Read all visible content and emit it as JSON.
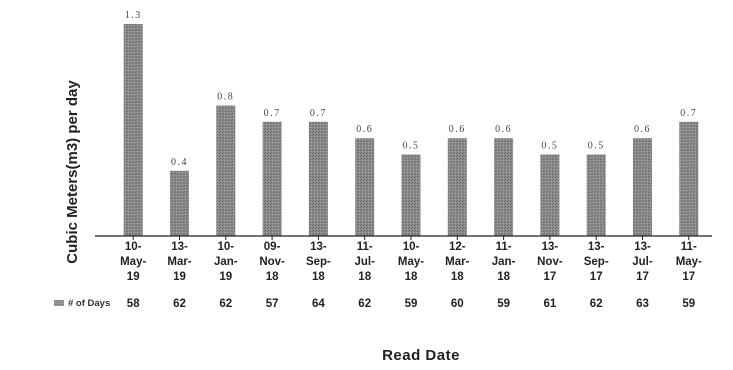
{
  "chart_data": {
    "type": "bar",
    "title": "",
    "ylabel": "Cubic Meters(m3) per day",
    "xlabel": "Read Date",
    "categories": [
      [
        "10-",
        "May-",
        "19"
      ],
      [
        "13-",
        "Mar-",
        "19"
      ],
      [
        "10-",
        "Jan-",
        "19"
      ],
      [
        "09-",
        "Nov-",
        "18"
      ],
      [
        "13-",
        "Sep-",
        "18"
      ],
      [
        "11-",
        "Jul-",
        "18"
      ],
      [
        "10-",
        "May-",
        "18"
      ],
      [
        "12-",
        "Mar-",
        "18"
      ],
      [
        "11-",
        "Jan-",
        "18"
      ],
      [
        "13-",
        "Nov-",
        "17"
      ],
      [
        "13-",
        "Sep-",
        "17"
      ],
      [
        "13-",
        "Jul-",
        "17"
      ],
      [
        "11-",
        "May-",
        "17"
      ]
    ],
    "values": [
      1.3,
      0.4,
      0.8,
      0.7,
      0.7,
      0.6,
      0.5,
      0.6,
      0.6,
      0.5,
      0.5,
      0.6,
      0.7
    ],
    "value_labels": [
      "1.3",
      "0.4",
      "0.8",
      "0.7",
      "0.7",
      "0.6",
      "0.5",
      "0.6",
      "0.6",
      "0.5",
      "0.5",
      "0.6",
      "0.7"
    ],
    "ylim": [
      0,
      1.3
    ],
    "grid": false,
    "bar_color": "#8a8a8a",
    "table": {
      "legend_label": "# of Days",
      "values": [
        "58",
        "62",
        "62",
        "57",
        "64",
        "62",
        "59",
        "60",
        "59",
        "61",
        "62",
        "63",
        "59"
      ]
    }
  }
}
